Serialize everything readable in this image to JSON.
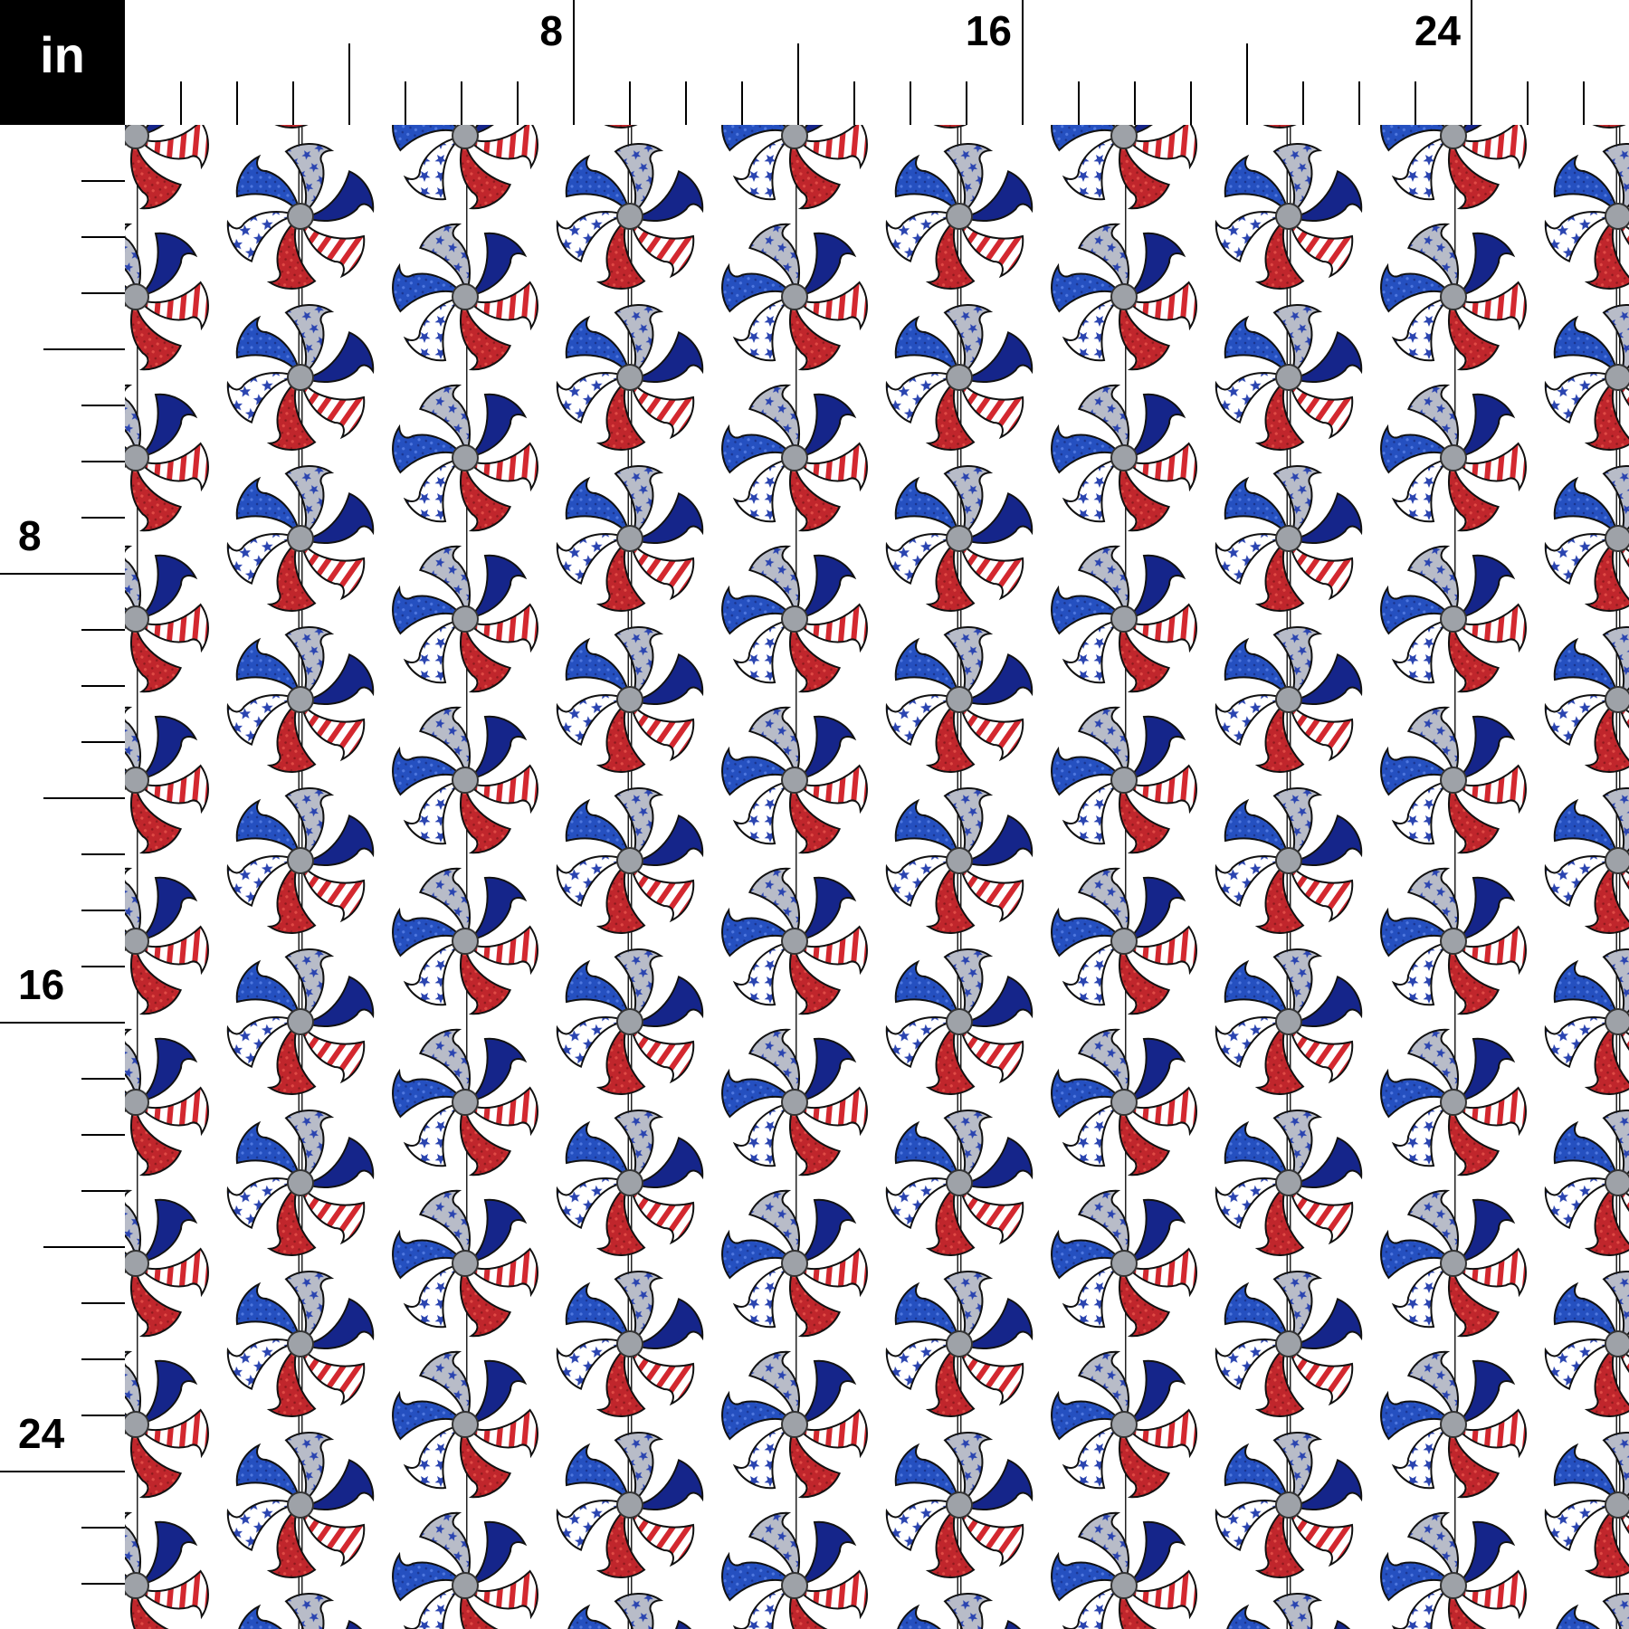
{
  "unit": "in",
  "top_ruler": {
    "labels": [
      "8",
      "16",
      "24"
    ]
  },
  "left_ruler": {
    "labels": [
      "8",
      "16",
      "24"
    ]
  }
}
